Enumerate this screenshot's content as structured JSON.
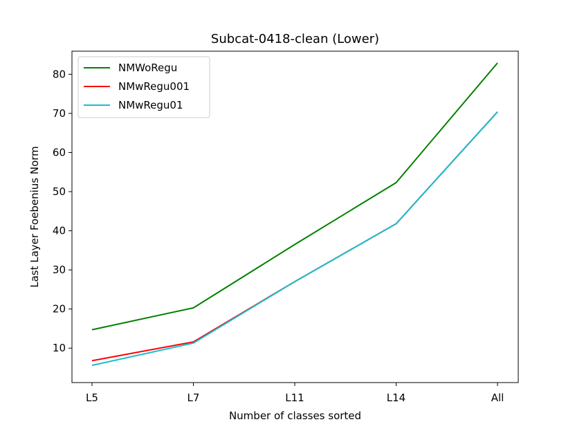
{
  "chart_data": {
    "type": "line",
    "title": "Subcat-0418-clean (Lower)",
    "xlabel": "Number of classes sorted",
    "ylabel": "Last Layer Foebenius Norm",
    "categories": [
      "L5",
      "L7",
      "L11",
      "L14",
      "All"
    ],
    "ylim": [
      1.2,
      85.9
    ],
    "yticks": [
      10,
      20,
      30,
      40,
      50,
      60,
      70,
      80
    ],
    "grid": false,
    "legend_position": "top-left",
    "series": [
      {
        "name": "NMWoRegu",
        "color": "#008000",
        "values": [
          14.7,
          20.3,
          36.5,
          52.3,
          82.9
        ]
      },
      {
        "name": "NMwRegu001",
        "color": "#ff0000",
        "values": [
          6.8,
          11.6,
          27.0,
          41.8,
          70.4
        ]
      },
      {
        "name": "NMwRegu01",
        "color": "#17becf",
        "values": [
          5.6,
          11.3,
          27.0,
          41.8,
          70.4
        ]
      }
    ]
  }
}
